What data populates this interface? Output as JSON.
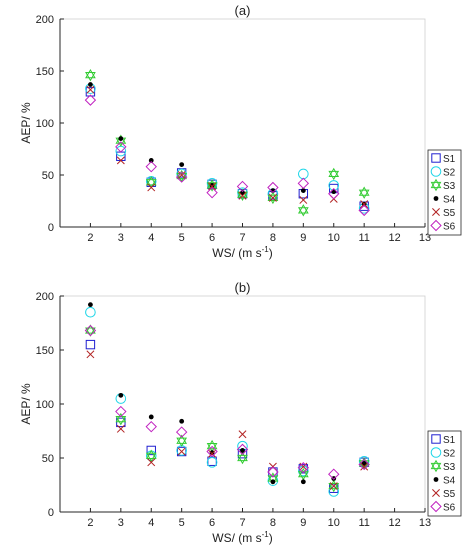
{
  "chart_data": [
    {
      "type": "scatter",
      "panel_label": "(a)",
      "xlabel": "WS/ (m s",
      "xlabel_sup": "-1",
      "xlabel_end": ")",
      "ylabel": "AEP/ %",
      "xlim": [
        1,
        13
      ],
      "ylim": [
        0,
        200
      ],
      "xticks": [
        2,
        3,
        4,
        5,
        6,
        7,
        8,
        9,
        10,
        11,
        12,
        13
      ],
      "yticks": [
        0,
        50,
        100,
        150,
        200
      ],
      "legend_placement": "right-bottom",
      "x": [
        2,
        3,
        4,
        5,
        6,
        7,
        8,
        9,
        10,
        11
      ],
      "series": [
        {
          "name": "S1",
          "values": [
            130,
            68,
            43,
            52,
            41,
            32,
            30,
            32,
            37,
            20
          ]
        },
        {
          "name": "S2",
          "values": [
            133,
            73,
            44,
            51,
            42,
            33,
            32,
            51,
            40,
            18
          ]
        },
        {
          "name": "S3",
          "values": [
            146,
            83,
            43,
            49,
            40,
            31,
            28,
            16,
            51,
            33
          ]
        },
        {
          "name": "S4",
          "values": [
            137,
            85,
            64,
            60,
            40,
            33,
            35,
            35,
            34,
            22
          ]
        },
        {
          "name": "S5",
          "values": [
            132,
            64,
            38,
            50,
            39,
            30,
            28,
            26,
            27,
            22
          ]
        },
        {
          "name": "S6",
          "values": [
            122,
            77,
            58,
            48,
            33,
            39,
            38,
            42,
            32,
            16
          ]
        }
      ]
    },
    {
      "type": "scatter",
      "panel_label": "(b)",
      "xlabel": "WS/ (m s",
      "xlabel_sup": "-1",
      "xlabel_end": ")",
      "ylabel": "AEP/ %",
      "xlim": [
        1,
        13
      ],
      "ylim": [
        0,
        200
      ],
      "xticks": [
        2,
        3,
        4,
        5,
        6,
        7,
        8,
        9,
        10,
        11,
        12,
        13
      ],
      "yticks": [
        0,
        50,
        100,
        150,
        200
      ],
      "legend_placement": "right-bottom",
      "x": [
        2,
        3,
        4,
        5,
        6,
        7,
        8,
        9,
        10,
        11
      ],
      "series": [
        {
          "name": "S1",
          "values": [
            155,
            83,
            57,
            56,
            47,
            54,
            37,
            40,
            22,
            46
          ]
        },
        {
          "name": "S2",
          "values": [
            185,
            105,
            52,
            57,
            46,
            61,
            29,
            38,
            19,
            47
          ]
        },
        {
          "name": "S3",
          "values": [
            168,
            86,
            52,
            66,
            61,
            50,
            31,
            35,
            24,
            45
          ]
        },
        {
          "name": "S4",
          "values": [
            192,
            108,
            88,
            84,
            55,
            57,
            28,
            28,
            31,
            45
          ]
        },
        {
          "name": "S5",
          "values": [
            146,
            77,
            46,
            56,
            54,
            72,
            42,
            42,
            24,
            42
          ]
        },
        {
          "name": "S6",
          "values": [
            168,
            93,
            79,
            74,
            56,
            58,
            37,
            41,
            35,
            44
          ]
        }
      ]
    }
  ],
  "legend": {
    "colors": [
      "#1f1fd0",
      "#1fd6e8",
      "#33cc33",
      "#000000",
      "#b22222",
      "#c020c0"
    ],
    "markers": [
      "square",
      "circle",
      "hexagram",
      "dot",
      "x",
      "diamond"
    ]
  }
}
